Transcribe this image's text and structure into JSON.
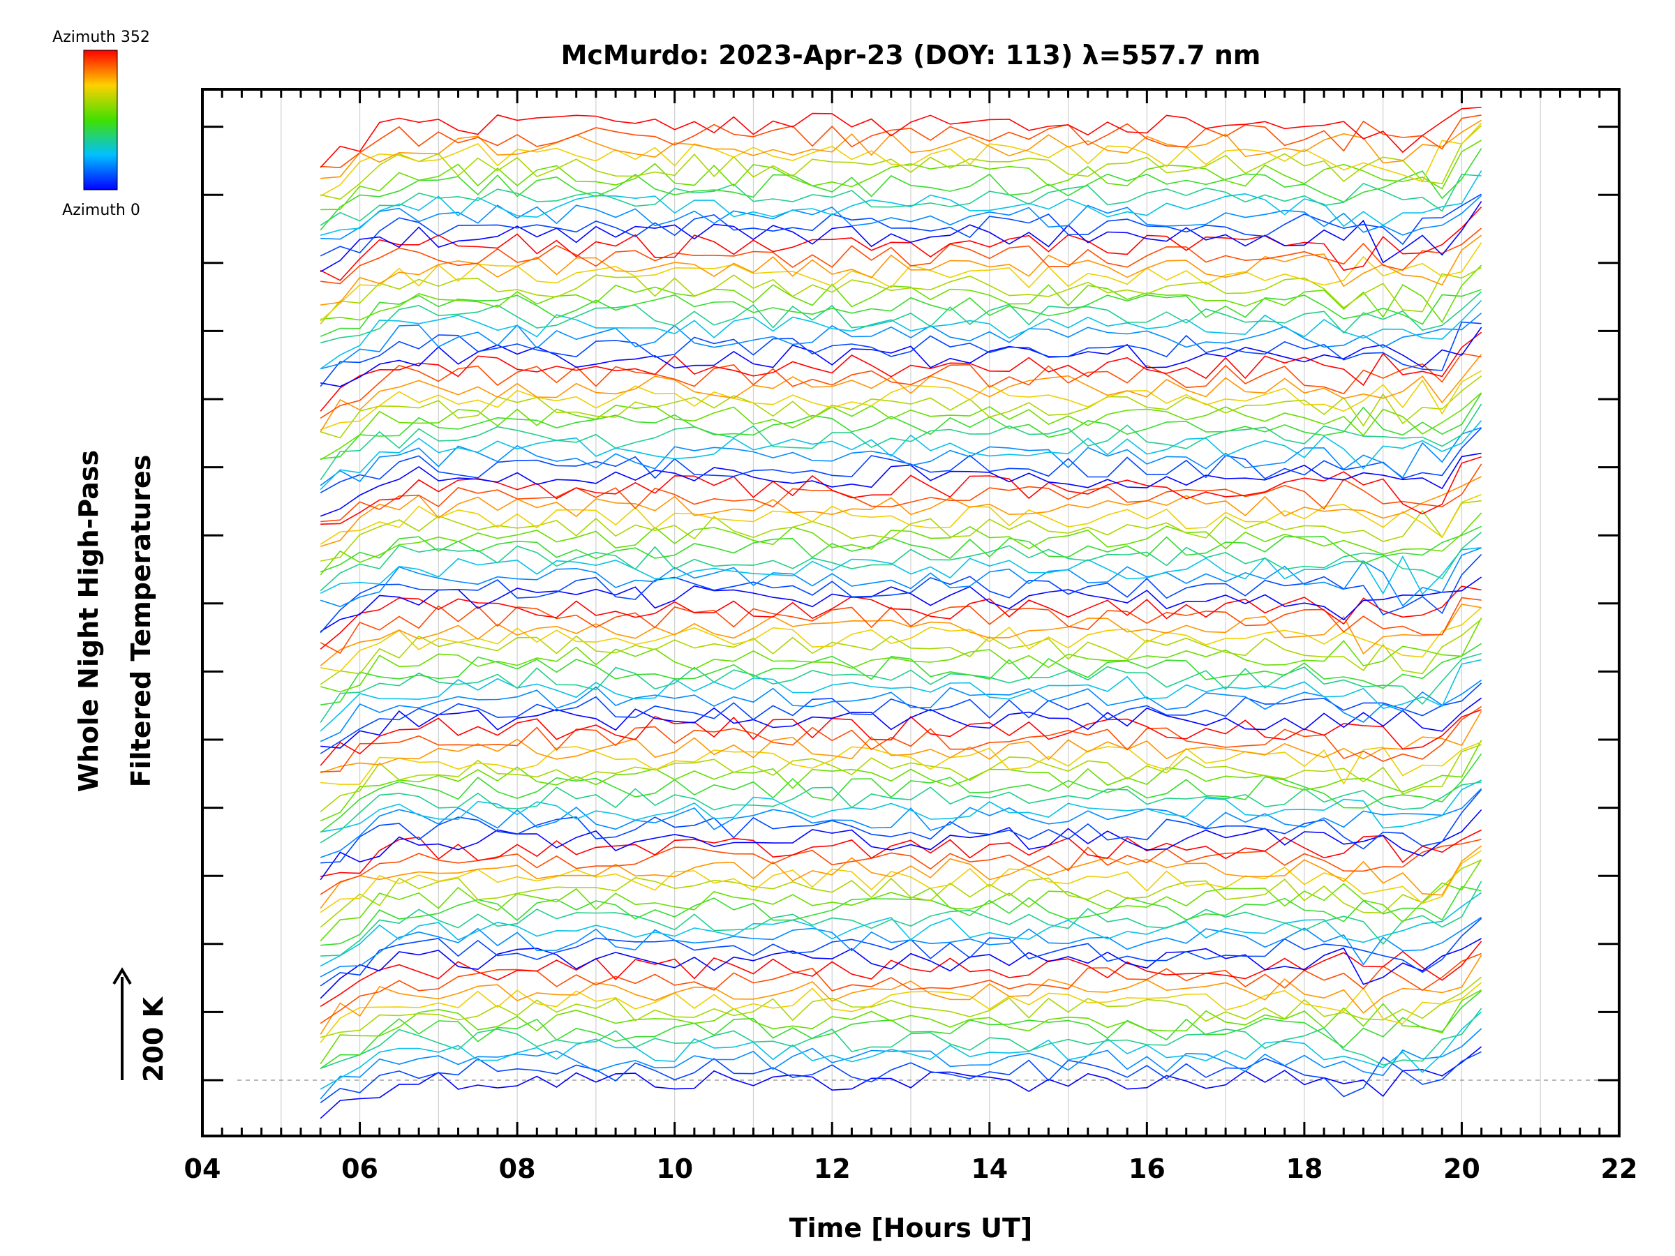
{
  "chart_data": {
    "type": "line",
    "title": "McMurdo: 2023-Apr-23 (DOY: 113) λ=557.7 nm",
    "xlabel": "Time [Hours UT]",
    "ylabel_line1": "Whole Night High-Pass",
    "ylabel_line2": "Filtered Temperatures",
    "scale_label": "200 K",
    "xlim": [
      4,
      22
    ],
    "x_ticks": [
      "04",
      "06",
      "08",
      "10",
      "12",
      "14",
      "16",
      "18",
      "20",
      "22"
    ],
    "colorbar": {
      "top_label": "Azimuth 352",
      "bottom_label": "Azimuth 0",
      "min": 0,
      "max": 352
    },
    "time_start": 5.5,
    "time_end": 20.4,
    "time_step": 0.25,
    "azimuths": [
      0,
      32,
      64,
      96,
      128,
      160,
      192,
      224,
      256,
      288,
      320,
      352
    ],
    "n_groups": 8,
    "offset_between_traces": 1,
    "series_description": "Stacked high-pass filtered temperature traces, one per azimuth, repeated in groups offset vertically"
  },
  "colors": {
    "grid": "#d0d0d0",
    "axis": "#000000",
    "baseline": "#a0a0a0"
  }
}
